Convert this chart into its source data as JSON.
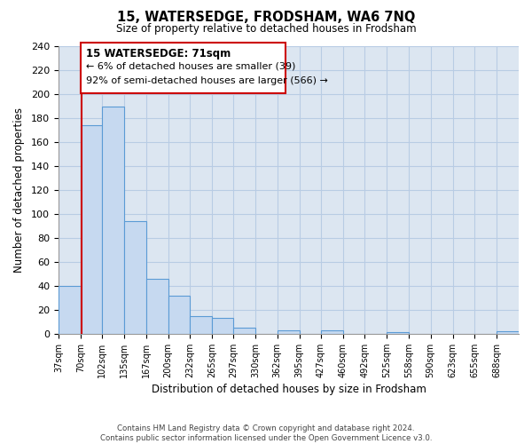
{
  "title": "15, WATERSEDGE, FRODSHAM, WA6 7NQ",
  "subtitle": "Size of property relative to detached houses in Frodsham",
  "xlabel": "Distribution of detached houses by size in Frodsham",
  "ylabel": "Number of detached properties",
  "bar_labels": [
    "37sqm",
    "70sqm",
    "102sqm",
    "135sqm",
    "167sqm",
    "200sqm",
    "232sqm",
    "265sqm",
    "297sqm",
    "330sqm",
    "362sqm",
    "395sqm",
    "427sqm",
    "460sqm",
    "492sqm",
    "525sqm",
    "558sqm",
    "590sqm",
    "623sqm",
    "655sqm",
    "688sqm"
  ],
  "bar_values": [
    40,
    174,
    190,
    94,
    46,
    32,
    15,
    13,
    5,
    0,
    3,
    0,
    3,
    0,
    0,
    1,
    0,
    0,
    0,
    0,
    2
  ],
  "bar_color": "#c6d9f0",
  "bar_edge_color": "#5b9bd5",
  "ylim": [
    0,
    240
  ],
  "yticks": [
    0,
    20,
    40,
    60,
    80,
    100,
    120,
    140,
    160,
    180,
    200,
    220,
    240
  ],
  "property_line_x": 71,
  "property_line_color": "#cc0000",
  "annotation_title": "15 WATERSEDGE: 71sqm",
  "annotation_line1": "← 6% of detached houses are smaller (39)",
  "annotation_line2": "92% of semi-detached houses are larger (566) →",
  "annotation_box_color": "#ffffff",
  "annotation_box_edge": "#cc0000",
  "footer_line1": "Contains HM Land Registry data © Crown copyright and database right 2024.",
  "footer_line2": "Contains public sector information licensed under the Open Government Licence v3.0.",
  "background_color": "#ffffff",
  "plot_bg_color": "#dce6f1",
  "grid_color": "#b8cce4"
}
